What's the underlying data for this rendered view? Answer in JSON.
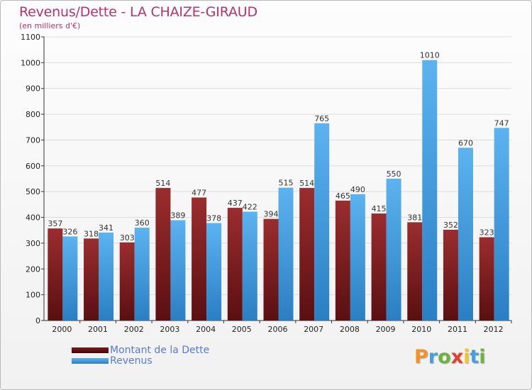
{
  "chart_data": {
    "type": "bar",
    "title": "Revenus/Dette - LA CHAIZE-GIRAUD",
    "subtitle": "(en milliers d'€)",
    "categories": [
      "2000",
      "2001",
      "2002",
      "2003",
      "2004",
      "2005",
      "2006",
      "2007",
      "2008",
      "2009",
      "2010",
      "2011",
      "2012"
    ],
    "series": [
      {
        "name": "Montant de la Dette",
        "color": "#8b1f22",
        "values": [
          357,
          318,
          303,
          514,
          477,
          437,
          394,
          514,
          465,
          415,
          381,
          352,
          323
        ]
      },
      {
        "name": "Revenus",
        "color": "#4ea4e6",
        "values": [
          326,
          341,
          360,
          389,
          378,
          422,
          515,
          765,
          490,
          550,
          1010,
          670,
          747
        ]
      }
    ],
    "ylim": [
      0,
      1100
    ],
    "yticks": [
      0,
      100,
      200,
      300,
      400,
      500,
      600,
      700,
      800,
      900,
      1000,
      1100
    ],
    "grid": true,
    "legend_position": "bottom-left",
    "xlabel": "",
    "ylabel": ""
  },
  "logo": {
    "letters": [
      "P",
      "r",
      "o",
      "x",
      "i",
      "t",
      "i"
    ],
    "colors": [
      "#f0932b",
      "#48a0db",
      "#6cb33f",
      "#e0412f",
      "#f3c623",
      "#48a0db",
      "#6cb33f"
    ]
  }
}
